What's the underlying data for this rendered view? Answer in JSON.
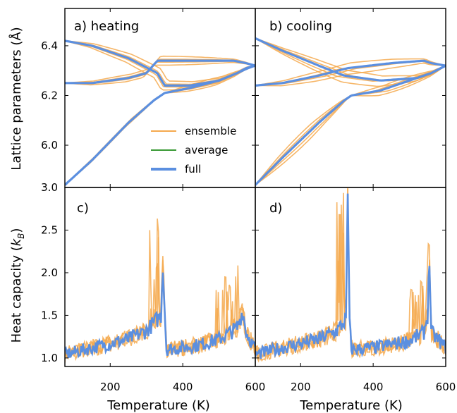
{
  "figure": {
    "ylabel_top": "Lattice parameters (Å)",
    "ylabel_bottom_main": "Heat capacity (",
    "ylabel_bottom_sym": "k",
    "ylabel_bottom_sub": "B",
    "ylabel_bottom_end": ")",
    "xlabel_left": "Temperature (K)",
    "xlabel_right": "Temperature (K)"
  },
  "legend": {
    "items": [
      {
        "label": "ensemble",
        "color": "#f5a94e"
      },
      {
        "label": "average",
        "color": "#3a9a35"
      },
      {
        "label": "full",
        "color": "#5b8fe0"
      }
    ]
  },
  "colors": {
    "ensemble": "#f5a94e",
    "average": "#3a9a35",
    "full": "#5b8fe0"
  },
  "chart_data": [
    {
      "id": "a",
      "type": "line",
      "title": "a) heating",
      "xlim": [
        75,
        600
      ],
      "ylim": [
        5.83,
        6.55
      ],
      "xticks": [
        200,
        400,
        600
      ],
      "yticks": [
        6.0,
        6.2,
        6.4
      ],
      "ytick_labels": [
        "6.0",
        "6.2",
        "6.4"
      ],
      "show_xtick_labels": false,
      "series": [
        {
          "name": "full",
          "x": [
            75,
            150,
            250,
            330,
            350,
            420,
            500,
            550,
            580,
            600
          ],
          "y": [
            6.42,
            6.4,
            6.35,
            6.29,
            6.24,
            6.24,
            6.26,
            6.29,
            6.31,
            6.32
          ]
        },
        {
          "name": "full",
          "x": [
            75,
            150,
            250,
            300,
            330,
            350,
            450,
            540,
            575,
            600
          ],
          "y": [
            6.25,
            6.25,
            6.27,
            6.29,
            6.34,
            6.34,
            6.34,
            6.34,
            6.33,
            6.32
          ]
        },
        {
          "name": "full",
          "x": [
            75,
            150,
            250,
            320,
            340,
            350
          ],
          "y": [
            5.84,
            5.94,
            6.09,
            6.18,
            6.2,
            6.21
          ]
        },
        {
          "name": "full",
          "x": [
            350,
            420,
            500,
            550,
            575,
            600
          ],
          "y": [
            6.21,
            6.23,
            6.26,
            6.29,
            6.31,
            6.32
          ]
        }
      ]
    },
    {
      "id": "b",
      "type": "line",
      "title": "b) cooling",
      "xlim": [
        75,
        600
      ],
      "ylim": [
        5.83,
        6.55
      ],
      "xticks": [
        200,
        400,
        600
      ],
      "yticks": [
        6.0,
        6.2,
        6.4
      ],
      "show_xtick_labels": false,
      "series": [
        {
          "name": "full",
          "x": [
            75,
            150,
            250,
            320,
            420,
            520,
            560,
            600
          ],
          "y": [
            6.43,
            6.38,
            6.32,
            6.28,
            6.26,
            6.27,
            6.29,
            6.32
          ]
        },
        {
          "name": "full",
          "x": [
            75,
            150,
            250,
            330,
            450,
            540,
            560,
            600
          ],
          "y": [
            6.24,
            6.25,
            6.28,
            6.31,
            6.33,
            6.34,
            6.33,
            6.32
          ]
        },
        {
          "name": "full",
          "x": [
            75,
            150,
            250,
            320,
            340
          ],
          "y": [
            5.84,
            5.95,
            6.09,
            6.18,
            6.2
          ]
        },
        {
          "name": "full",
          "x": [
            340,
            420,
            500,
            560,
            600
          ],
          "y": [
            6.2,
            6.22,
            6.26,
            6.29,
            6.32
          ]
        }
      ]
    },
    {
      "id": "c",
      "type": "line",
      "title": "c)",
      "xlim": [
        75,
        600
      ],
      "ylim": [
        0.9,
        3.0
      ],
      "xticks": [
        200,
        400,
        600
      ],
      "xtick_labels": [
        "200",
        "400",
        "600"
      ],
      "yticks": [
        1.0,
        1.5,
        2.0,
        2.5,
        3.0
      ],
      "ytick_labels": [
        "1.0",
        "1.5",
        "2.0",
        "2.5",
        "3.0"
      ],
      "series": [
        {
          "name": "full",
          "x": [
            75,
            150,
            250,
            300,
            340,
            345,
            350,
            355,
            400,
            450,
            500,
            550,
            565,
            575,
            600
          ],
          "y": [
            1.04,
            1.12,
            1.22,
            1.32,
            1.5,
            2.12,
            1.6,
            1.1,
            1.12,
            1.16,
            1.22,
            1.35,
            1.55,
            1.3,
            1.1
          ]
        }
      ]
    },
    {
      "id": "d",
      "type": "line",
      "title": "d)",
      "xlim": [
        75,
        600
      ],
      "ylim": [
        0.9,
        3.0
      ],
      "xticks": [
        200,
        400,
        600
      ],
      "xtick_labels": [
        "200",
        "400",
        "600"
      ],
      "yticks": [
        1.0,
        1.5,
        2.0,
        2.5,
        3.0
      ],
      "show_ytick_labels": false,
      "series": [
        {
          "name": "full",
          "x": [
            75,
            150,
            250,
            300,
            325,
            330,
            335,
            340,
            400,
            450,
            500,
            540,
            550,
            555,
            560,
            600
          ],
          "y": [
            1.04,
            1.12,
            1.22,
            1.32,
            1.45,
            2.93,
            1.4,
            1.1,
            1.12,
            1.16,
            1.2,
            1.3,
            1.5,
            2.18,
            1.3,
            1.12
          ]
        }
      ]
    }
  ]
}
